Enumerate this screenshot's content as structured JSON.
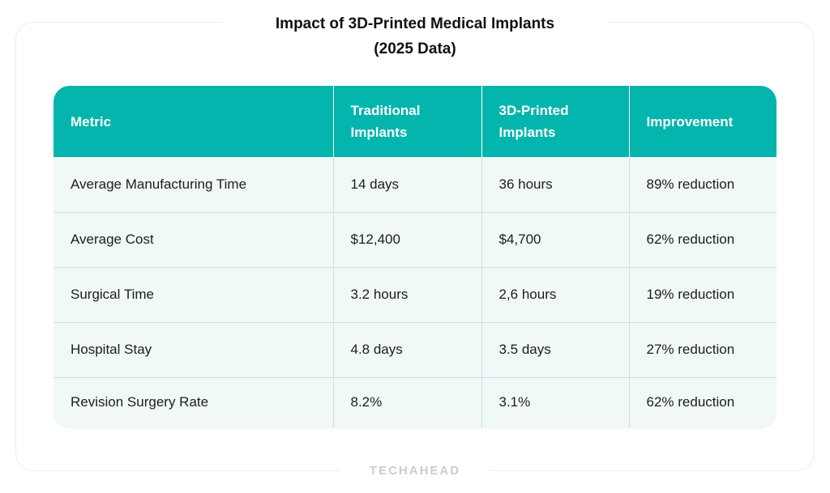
{
  "title": {
    "line1": "Impact of 3D-Printed Medical Implants",
    "line2": "(2025 Data)"
  },
  "table": {
    "headers": [
      [
        "Metric"
      ],
      [
        "Traditional",
        "Implants"
      ],
      [
        "3D-Printed",
        "Implants"
      ],
      [
        "Improvement"
      ]
    ],
    "rows": [
      [
        "Average Manufacturing Time",
        "14 days",
        "36 hours",
        "89% reduction"
      ],
      [
        "Average Cost",
        "$12,400",
        "$4,700",
        "62% reduction"
      ],
      [
        "Surgical Time",
        "3.2 hours",
        "2,6 hours",
        "19% reduction"
      ],
      [
        "Hospital Stay",
        "4.8 days",
        "3.5 days",
        "27% reduction"
      ],
      [
        "Revision Surgery Rate",
        "8.2%",
        "3.1%",
        "62% reduction"
      ]
    ]
  },
  "footer": {
    "brand": "TECHAHEAD"
  },
  "colors": {
    "header_bg": "#04b5ad",
    "row_bg": "#f1f8f8"
  }
}
